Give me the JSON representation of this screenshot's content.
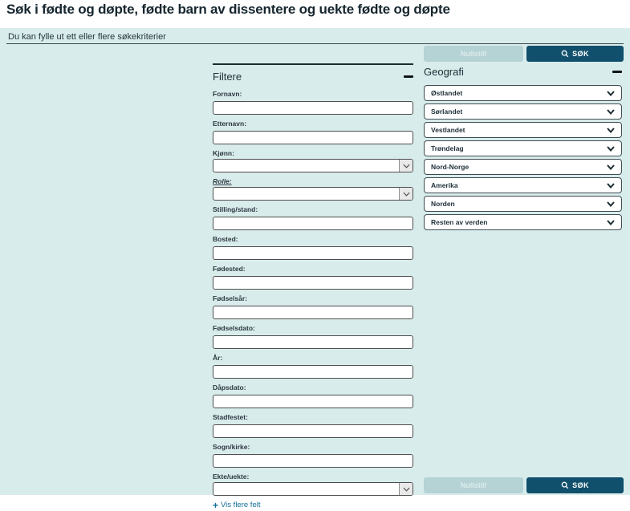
{
  "page": {
    "title": "Søk i fødte og døpte, fødte barn av dissentere og uekte fødte og døpte",
    "subtitle": "Du kan fylle ut ett eller flere søkekriterier"
  },
  "actions": {
    "reset_label": "Nullstill",
    "search_label": "SØK"
  },
  "icons": {
    "search": "magnifier",
    "collapse": "minus",
    "more_fields": "plus",
    "dropdown": "chevron-down"
  },
  "filters": {
    "heading": "Filtere",
    "fields": [
      {
        "label": "Fornavn:",
        "type": "text",
        "value": ""
      },
      {
        "label": "Etternavn:",
        "type": "text",
        "value": ""
      },
      {
        "label": "Kjønn:",
        "type": "select",
        "value": ""
      },
      {
        "label": "Rolle:",
        "type": "select",
        "value": "",
        "link_label": true
      },
      {
        "label": "Stilling/stand:",
        "type": "text",
        "value": ""
      },
      {
        "label": "Bosted:",
        "type": "text",
        "value": ""
      },
      {
        "label": "Fødested:",
        "type": "text",
        "value": ""
      },
      {
        "label": "Fødselsår:",
        "type": "text",
        "value": ""
      },
      {
        "label": "Fødselsdato:",
        "type": "text",
        "value": ""
      },
      {
        "label": "År:",
        "type": "text",
        "value": ""
      },
      {
        "label": "Dåpsdato:",
        "type": "text",
        "value": ""
      },
      {
        "label": "Stadfestet:",
        "type": "text",
        "value": ""
      },
      {
        "label": "Sogn/kirke:",
        "type": "text",
        "value": ""
      },
      {
        "label": "Ekte/uekte:",
        "type": "select",
        "value": ""
      }
    ],
    "more_fields_label": "Vis flere felt"
  },
  "geography": {
    "heading": "Geografi",
    "regions": [
      "Østlandet",
      "Sørlandet",
      "Vestlandet",
      "Trøndelag",
      "Nord-Norge",
      "Amerika",
      "Norden",
      "Resten av verden"
    ]
  },
  "colors": {
    "panel_bg": "#d9ecec",
    "primary_button_bg": "#11506c",
    "primary_button_text": "#ffffff",
    "secondary_button_bg": "#b5d2d5",
    "secondary_button_text": "#dcebec",
    "link": "#0f6e95",
    "heading_text": "#1d2d34"
  }
}
